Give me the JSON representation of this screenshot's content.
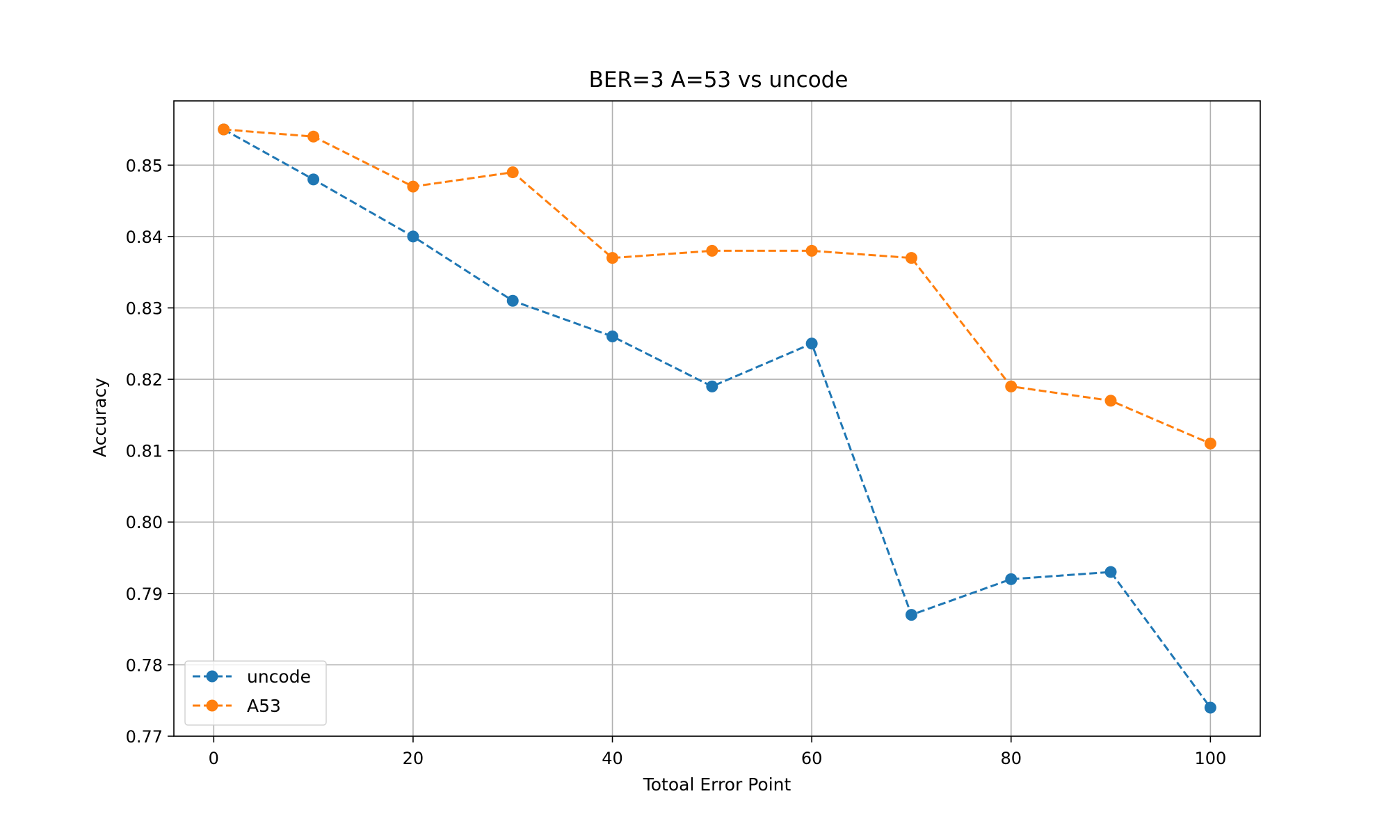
{
  "chart_data": {
    "type": "line",
    "title": "BER=3 A=53 vs uncode",
    "xlabel": "Totoal Error Point",
    "ylabel": "Accuracy",
    "xlim": [
      -4,
      105
    ],
    "ylim": [
      0.77,
      0.859
    ],
    "x_ticks": [
      0,
      20,
      40,
      60,
      80,
      100
    ],
    "y_ticks": [
      0.77,
      0.78,
      0.79,
      0.8,
      0.81,
      0.82,
      0.83,
      0.84,
      0.85
    ],
    "x_tick_labels": [
      "0",
      "20",
      "40",
      "60",
      "80",
      "100"
    ],
    "y_tick_labels": [
      "0.77",
      "0.78",
      "0.79",
      "0.80",
      "0.81",
      "0.82",
      "0.83",
      "0.84",
      "0.85"
    ],
    "grid": true,
    "legend_position": "lower-left",
    "x": [
      1,
      10,
      20,
      30,
      40,
      50,
      60,
      70,
      80,
      90,
      100
    ],
    "series": [
      {
        "name": "uncode",
        "color": "#1f77b4",
        "line_style": "dashed",
        "marker": "circle",
        "values": [
          0.855,
          0.848,
          0.84,
          0.831,
          0.826,
          0.819,
          0.825,
          0.787,
          0.792,
          0.793,
          0.774
        ]
      },
      {
        "name": "A53",
        "color": "#ff7f0e",
        "line_style": "dashed",
        "marker": "circle",
        "values": [
          0.855,
          0.854,
          0.847,
          0.849,
          0.837,
          0.838,
          0.838,
          0.837,
          0.819,
          0.817,
          0.811
        ]
      }
    ]
  }
}
